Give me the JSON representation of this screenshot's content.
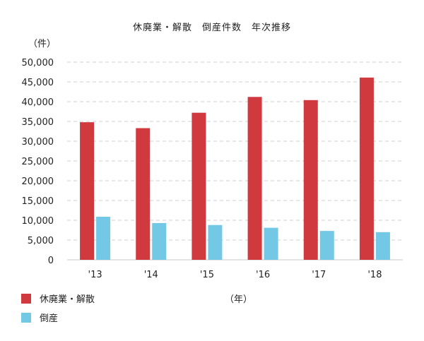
{
  "chart_data": {
    "type": "bar",
    "title": "休廃業・解散　倒産件数　年次推移",
    "ylabel": "（件）",
    "xlabel": "（年）",
    "categories": [
      "'13",
      "'14",
      "'15",
      "'16",
      "'17",
      "'18"
    ],
    "series": [
      {
        "name": "休廃業・解散",
        "color": "#d0393e",
        "values": [
          34800,
          33300,
          37200,
          41200,
          40400,
          46100
        ]
      },
      {
        "name": "倒産",
        "color": "#73c8e6",
        "values": [
          10900,
          9300,
          8800,
          8100,
          7300,
          7000
        ]
      }
    ],
    "ylim": [
      0,
      50000
    ],
    "yticks": [
      "0",
      "5,000",
      "10,000",
      "15,000",
      "20,000",
      "25,000",
      "30,000",
      "35,000",
      "40,000",
      "45,000",
      "50,000"
    ],
    "grid": true,
    "legend_position": "bottom-left"
  }
}
